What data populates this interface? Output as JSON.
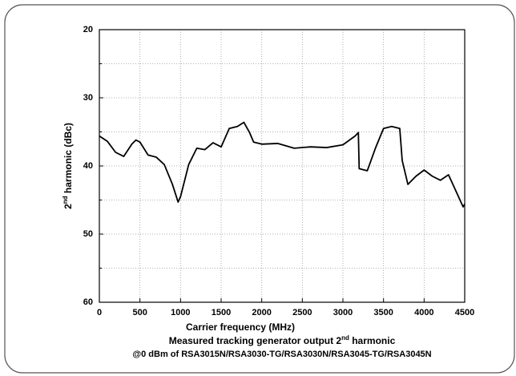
{
  "chart_data": {
    "type": "line",
    "ylabel": {
      "base": "2",
      "sup": "nd",
      "rest": " harmonic (dBc)"
    },
    "xlabel": "Carrier frequency (MHz)",
    "caption": {
      "base": "Measured tracking generator output 2",
      "sup": "nd",
      "rest": " harmonic"
    },
    "subcaption": "@0 dBm of RSA3015N/RSA3030-TG/RSA3030N/RSA3045-TG/RSA3045N",
    "x": [
      0,
      100,
      200,
      300,
      400,
      450,
      500,
      600,
      700,
      800,
      900,
      970,
      1000,
      1100,
      1200,
      1300,
      1400,
      1500,
      1600,
      1700,
      1780,
      1850,
      1900,
      2000,
      2200,
      2400,
      2600,
      2800,
      3000,
      3150,
      3190,
      3200,
      3300,
      3400,
      3500,
      3600,
      3700,
      3730,
      3800,
      3900,
      4000,
      4100,
      4200,
      4300,
      4400,
      4480,
      4500
    ],
    "series": [
      {
        "color": "#000000",
        "values": [
          35.6,
          36.4,
          38.0,
          38.6,
          36.8,
          36.2,
          36.5,
          38.4,
          38.7,
          39.8,
          42.7,
          45.3,
          44.5,
          39.8,
          37.4,
          37.6,
          36.6,
          37.2,
          34.5,
          34.2,
          33.6,
          35.1,
          36.5,
          36.8,
          36.7,
          37.4,
          37.2,
          37.3,
          36.9,
          35.6,
          35.1,
          40.4,
          40.7,
          37.4,
          34.5,
          34.2,
          34.5,
          39.2,
          42.7,
          41.5,
          40.6,
          41.5,
          42.1,
          41.3,
          43.9,
          46.0,
          45.6
        ]
      }
    ],
    "xlim": [
      0,
      4500
    ],
    "xticks": [
      0,
      500,
      1000,
      1500,
      2000,
      2500,
      3000,
      3500,
      4000,
      4500
    ],
    "ylim": [
      60,
      20
    ],
    "yticks": [
      20,
      30,
      40,
      50,
      60
    ],
    "minor_yticks": [
      25,
      35,
      45,
      55
    ],
    "grid": true
  }
}
